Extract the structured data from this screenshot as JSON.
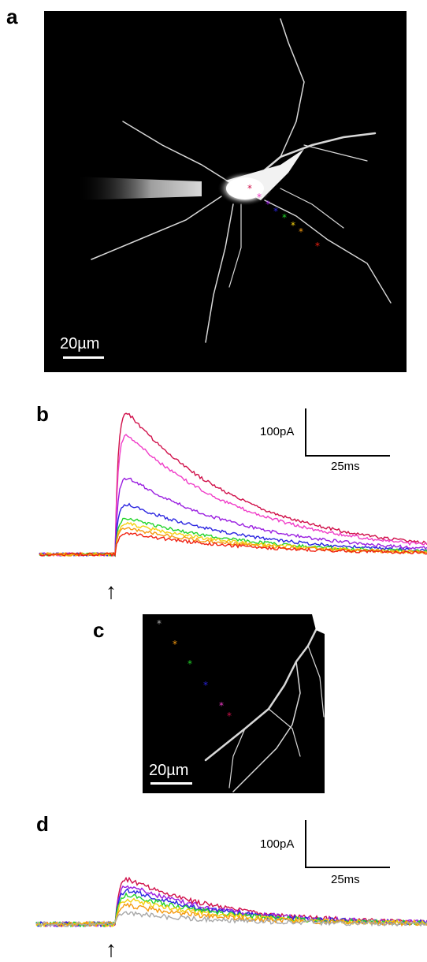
{
  "figure": {
    "panels": {
      "a": {
        "letter": "a",
        "scale_label": "20µm"
      },
      "b": {
        "letter": "b",
        "cal_current": "100pA",
        "cal_time": "25ms"
      },
      "c": {
        "letter": "c",
        "scale_label": "20µm"
      },
      "d": {
        "letter": "d",
        "cal_current": "100pA",
        "cal_time": "25ms"
      }
    },
    "stimulus_marker": "↑"
  },
  "colors": {
    "crimson": "#d0104a",
    "magenta": "#f03cc8",
    "purple": "#9a1ee0",
    "blue": "#2a24e0",
    "green": "#22d42a",
    "yellow": "#f4d010",
    "orange": "#f59a10",
    "red": "#f02010",
    "gray": "#a8a8a8"
  },
  "markers_a": [
    "crimson",
    "magenta",
    "purple",
    "blue",
    "green",
    "yellow",
    "orange",
    "red"
  ],
  "markers_c": [
    "gray",
    "orange",
    "green",
    "blue",
    "magenta",
    "crimson"
  ],
  "traces_b": [
    {
      "color": "crimson",
      "peak": 175
    },
    {
      "color": "magenta",
      "peak": 148
    },
    {
      "color": "purple",
      "peak": 95
    },
    {
      "color": "blue",
      "peak": 62
    },
    {
      "color": "green",
      "peak": 45
    },
    {
      "color": "yellow",
      "peak": 38
    },
    {
      "color": "orange",
      "peak": 32
    },
    {
      "color": "red",
      "peak": 26
    }
  ],
  "traces_d": [
    {
      "color": "crimson",
      "peak": 58
    },
    {
      "color": "purple",
      "peak": 50
    },
    {
      "color": "blue",
      "peak": 44
    },
    {
      "color": "green",
      "peak": 38
    },
    {
      "color": "yellow",
      "peak": 32
    },
    {
      "color": "orange",
      "peak": 24
    },
    {
      "color": "gray",
      "peak": 14
    }
  ]
}
